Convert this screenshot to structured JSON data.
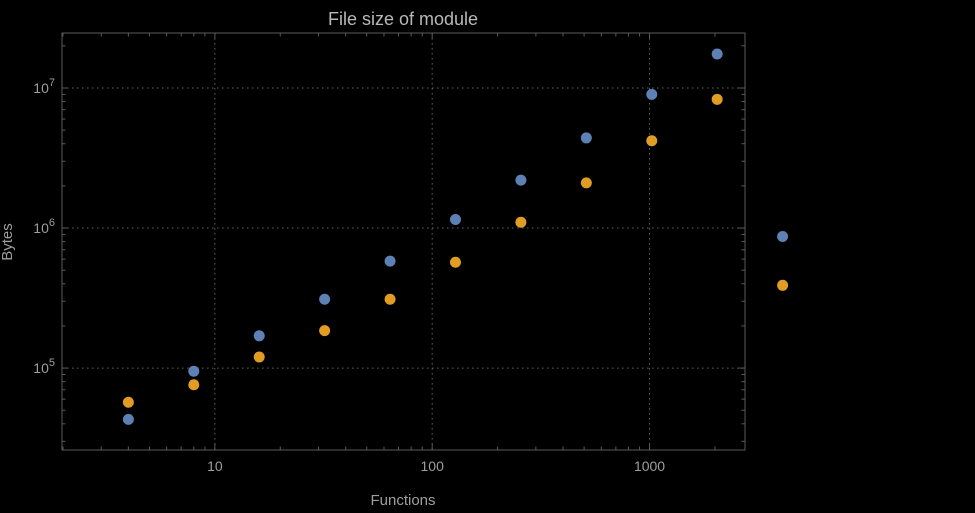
{
  "figure": {
    "background_color": "#000000",
    "frame_color": "#5a5a5a",
    "grid_color": "#707070",
    "text_color": "#9e9e9e",
    "title_color": "#b8b8b8"
  },
  "chart_data": {
    "type": "scatter",
    "title": "File size of module",
    "xlabel": "Functions",
    "ylabel": "Bytes",
    "x_scale": "log",
    "y_scale": "log",
    "xlim": [
      1.98,
      2750
    ],
    "ylim": [
      26000,
      24700000
    ],
    "x_ticks": [
      10,
      100,
      1000
    ],
    "x_tick_labels": [
      "10",
      "100",
      "1000"
    ],
    "y_ticks": [
      100000,
      1000000,
      10000000
    ],
    "y_tick_exponents": [
      5,
      6,
      7
    ],
    "grid": true,
    "legend": "none",
    "marker_size": 5.5,
    "x": [
      4,
      8,
      16,
      32,
      64,
      128,
      256,
      512,
      1024,
      2048,
      4096
    ],
    "series": [
      {
        "name": "series-1-blue",
        "color": "#5e81b5",
        "values": [
          43000,
          95000,
          170000,
          310000,
          580000,
          1150000,
          2200000,
          4400000,
          9000000,
          17500000,
          870000
        ]
      },
      {
        "name": "series-2-orange",
        "color": "#e19c24",
        "values": [
          57000,
          76000,
          120000,
          185000,
          310000,
          570000,
          1100000,
          2100000,
          4200000,
          8300000,
          390000
        ]
      }
    ]
  }
}
